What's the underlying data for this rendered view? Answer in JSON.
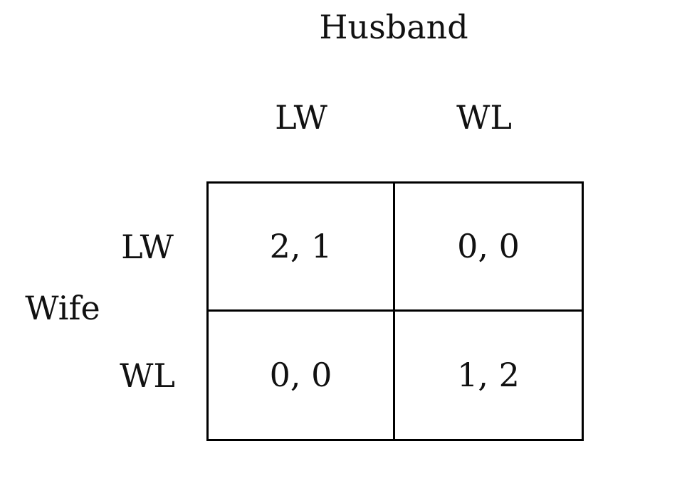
{
  "column_player": "Husband",
  "row_player": "Wife",
  "column_strategies": [
    "LW",
    "WL"
  ],
  "row_strategies": [
    "LW",
    "WL"
  ],
  "payoffs": [
    [
      "2, 1",
      "0, 0"
    ],
    [
      "0, 0",
      "1, 2"
    ]
  ]
}
